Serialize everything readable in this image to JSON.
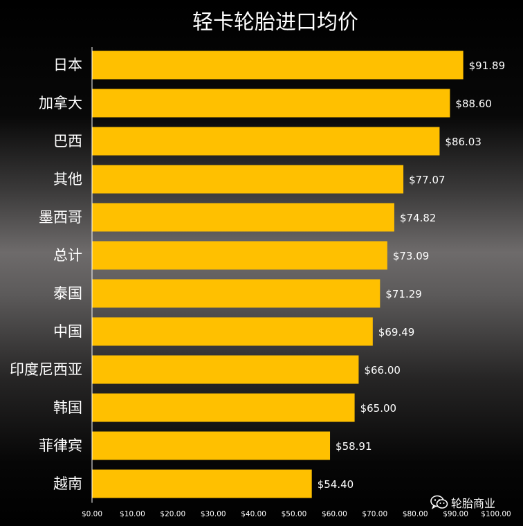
{
  "chart_data": {
    "type": "bar",
    "orientation": "horizontal",
    "title": "轻卡轮胎进口均价",
    "categories": [
      "日本",
      "加拿大",
      "巴西",
      "其他",
      "墨西哥",
      "总计",
      "泰国",
      "中国",
      "印度尼西亚",
      "韩国",
      "菲律宾",
      "越南"
    ],
    "values": [
      91.89,
      88.6,
      86.03,
      77.07,
      74.82,
      73.09,
      71.29,
      69.49,
      66.0,
      65.0,
      58.91,
      54.4
    ],
    "value_labels": [
      "$91.89",
      "$88.60",
      "$86.03",
      "$77.07",
      "$74.82",
      "$73.09",
      "$71.29",
      "$69.49",
      "$66.00",
      "$65.00",
      "$58.91",
      "$54.40"
    ],
    "x_ticks": [
      0,
      10,
      20,
      30,
      40,
      50,
      60,
      70,
      80,
      90,
      100
    ],
    "x_tick_labels": [
      "$0.00",
      "$10.00",
      "$20.00",
      "$30.00",
      "$40.00",
      "$50.00",
      "$60.00",
      "$70.00",
      "$80.00",
      "$90.00",
      "$100.00"
    ],
    "xlim": [
      0,
      100
    ],
    "xlabel": "",
    "ylabel": "",
    "grid": false,
    "legend": "none",
    "bar_color": "#ffc000",
    "text_color": "#ffffff"
  },
  "watermark": {
    "text": "轮胎商业",
    "icon": "wechat-icon"
  }
}
